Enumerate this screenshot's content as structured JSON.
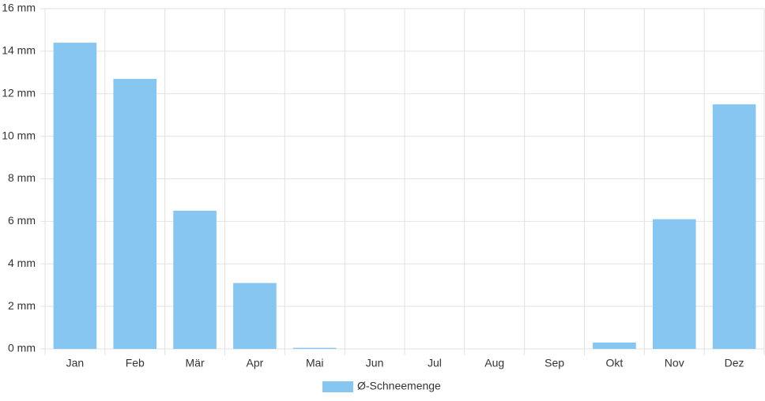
{
  "chart_data": {
    "type": "bar",
    "categories": [
      "Jan",
      "Feb",
      "Mär",
      "Apr",
      "Mai",
      "Jun",
      "Jul",
      "Aug",
      "Sep",
      "Okt",
      "Nov",
      "Dez"
    ],
    "series": [
      {
        "name": "Ø-Schneemenge",
        "color": "#87c6f1",
        "values": [
          14.4,
          12.7,
          6.5,
          3.1,
          0.05,
          0,
          0,
          0,
          0,
          0.3,
          6.1,
          11.5
        ]
      }
    ],
    "ylim": [
      0,
      16
    ],
    "yticks": [
      {
        "value": 0,
        "label": "0 mm"
      },
      {
        "value": 2,
        "label": "2 mm"
      },
      {
        "value": 4,
        "label": "4 mm"
      },
      {
        "value": 6,
        "label": "6 mm"
      },
      {
        "value": 8,
        "label": "8 mm"
      },
      {
        "value": 10,
        "label": "10 mm"
      },
      {
        "value": 12,
        "label": "12 mm"
      },
      {
        "value": 14,
        "label": "14 mm"
      },
      {
        "value": 16,
        "label": "16 mm"
      }
    ],
    "grid": true,
    "legend": "bottom"
  }
}
